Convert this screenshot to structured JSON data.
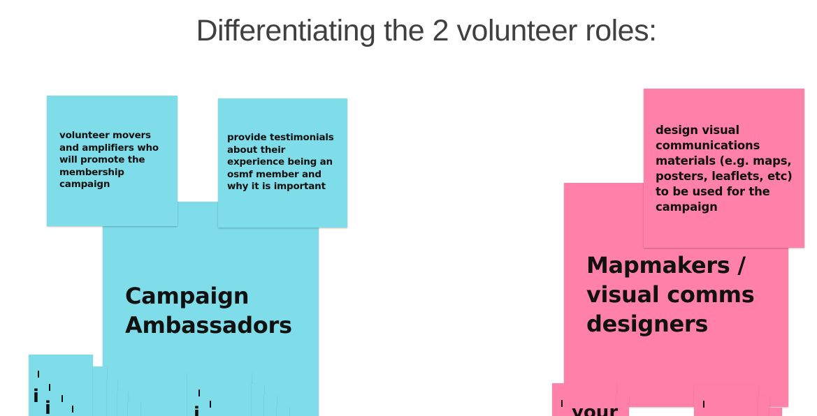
{
  "slide": {
    "title": "Differentiating the 2 volunteer roles:"
  },
  "notes": {
    "ambassadors_main": "Campaign\nAmbassadors",
    "ambassadors_note1": "volunteer movers\nand amplifiers who\nwill promote the\nmembership\ncampaign",
    "ambassadors_note2": "provide testimonials\nabout their\nexperience being an\nosmf member and\nwhy it is important",
    "mapmakers_main": "Mapmakers /\nvisual comms\ndesigners",
    "mapmakers_note1": "design visual\ncommunications\nmaterials (e.g. maps,\nposters, leaflets, etc)\nto be used for the\ncampaign"
  },
  "fragments": {
    "left_i": "i",
    "right_your": "your"
  },
  "colors": {
    "blue_note": "#7fdde9",
    "pink_note": "#ff80a9",
    "title_text": "#404040",
    "note_text": "#111111"
  }
}
